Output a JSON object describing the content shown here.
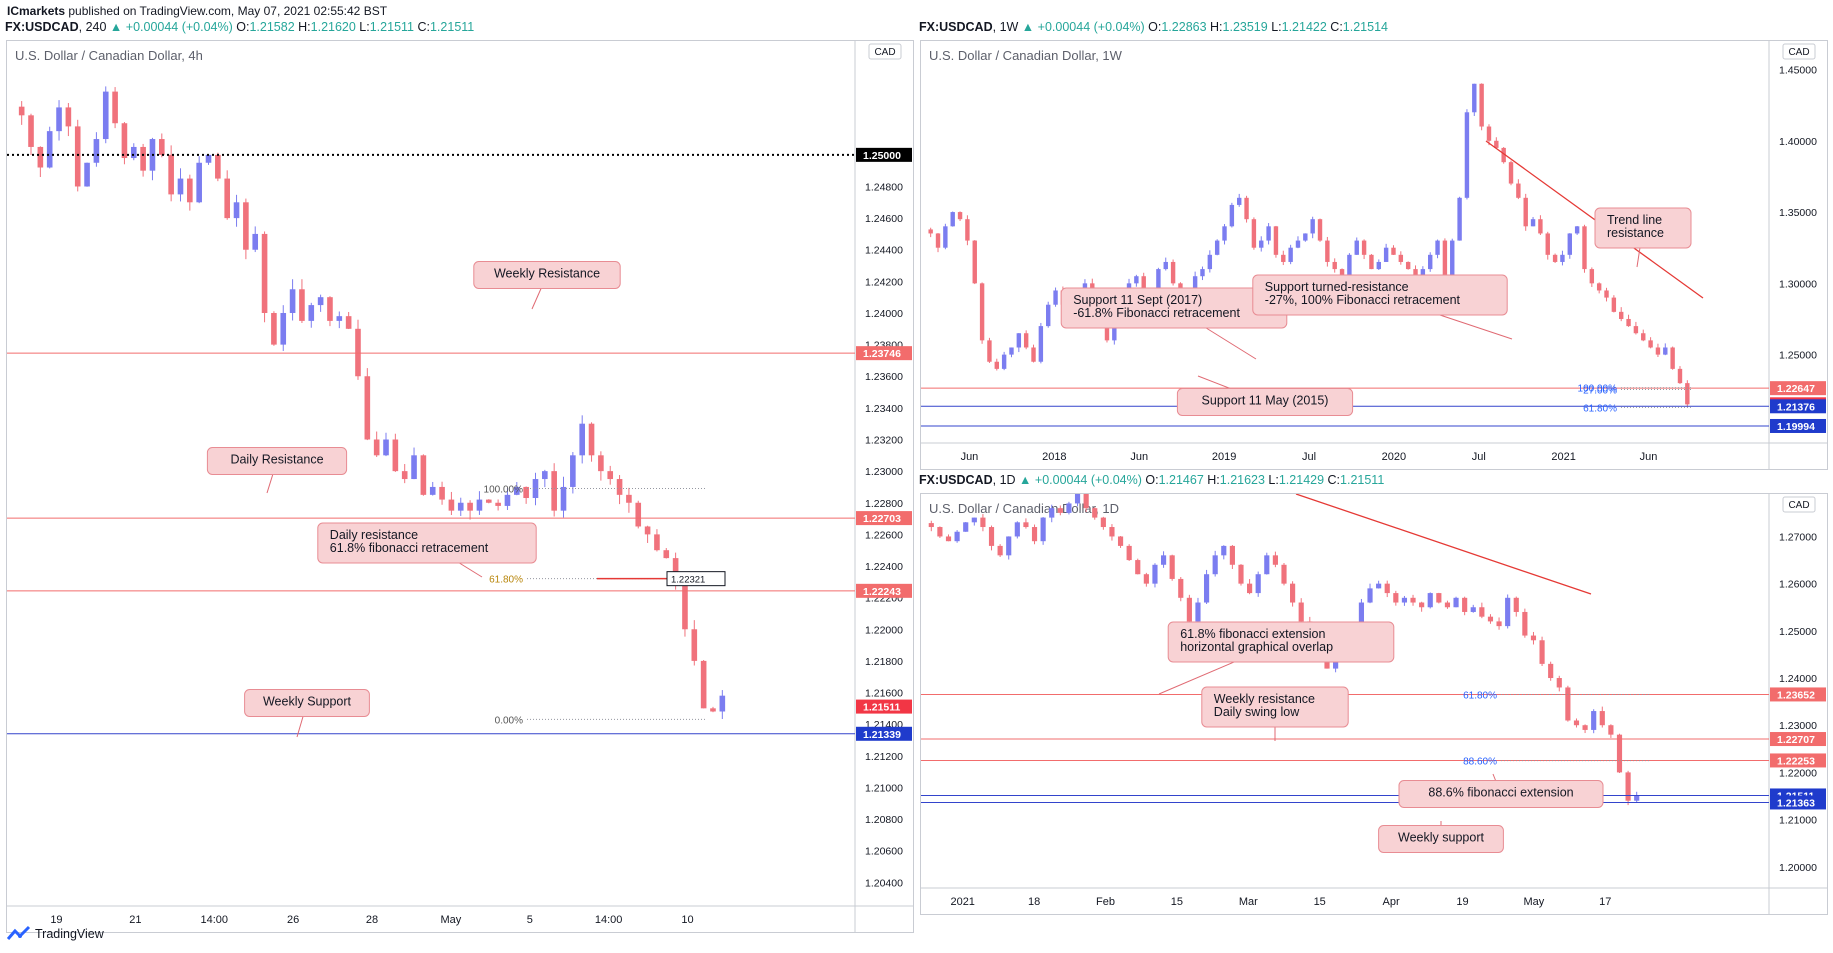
{
  "header": {
    "publisher": "ICmarkets",
    "published_text": "published on TradingView.com, May 07, 2021 02:55:42 BST"
  },
  "footer": {
    "brand": "TradingView"
  },
  "colors": {
    "up": "#7b7df0",
    "down": "#f0727c",
    "resistance": "#f26c6c",
    "support": "#3344cc",
    "label_bg": "#f8d2d4",
    "label_border": "#e88c93"
  },
  "chart_data": [
    {
      "id": "h4",
      "type": "candlestick",
      "symbol": "FX:USDCAD",
      "timeframe": "240",
      "change": "+0.00044 (+0.04%)",
      "ohlc": {
        "O": "1.21582",
        "H": "1.21620",
        "L": "1.21511",
        "C": "1.21511"
      },
      "title": "U.S. Dollar / Canadian Dollar, 4h",
      "currency": "CAD",
      "ylim": [
        1.2025,
        1.2572
      ],
      "y_ticks": [
        "1.24800",
        "1.24600",
        "1.24400",
        "1.24200",
        "1.24000",
        "1.23800",
        "1.23600",
        "1.23400",
        "1.23200",
        "1.23000",
        "1.22800",
        "1.22600",
        "1.22400",
        "1.22200",
        "1.22000",
        "1.21800",
        "1.21600",
        "1.21400",
        "1.21200",
        "1.21000",
        "1.20800",
        "1.20600",
        "1.20400"
      ],
      "x_ticks": [
        "19",
        "21",
        "14:00",
        "26",
        "28",
        "May",
        "5",
        "14:00",
        "10"
      ],
      "close_path": [
        1.2525,
        1.2505,
        1.2492,
        1.2515,
        1.253,
        1.2518,
        1.248,
        1.2495,
        1.251,
        1.254,
        1.252,
        1.2498,
        1.2505,
        1.249,
        1.251,
        1.25,
        1.2475,
        1.2485,
        1.247,
        1.2495,
        1.25,
        1.2485,
        1.246,
        1.247,
        1.244,
        1.245,
        1.24,
        1.238,
        1.24,
        1.2415,
        1.2395,
        1.2405,
        1.241,
        1.2395,
        1.2398,
        1.239,
        1.236,
        1.232,
        1.231,
        1.232,
        1.23,
        1.2295,
        1.231,
        1.2285,
        1.229,
        1.2282,
        1.2275,
        1.228,
        1.2275,
        1.2282,
        1.228,
        1.2278,
        1.2285,
        1.229,
        1.2283,
        1.2295,
        1.23,
        1.2275,
        1.229,
        1.231,
        1.233,
        1.231,
        1.23,
        1.2295,
        1.2285,
        1.228,
        1.2265,
        1.226,
        1.225,
        1.2245,
        1.223,
        1.22,
        1.218,
        1.215,
        1.2148,
        1.2158
      ],
      "levels": [
        {
          "price": 1.25,
          "label": "1.25000",
          "style": "dotted-black"
        },
        {
          "price": 1.23746,
          "label": "1.23746",
          "style": "resistance"
        },
        {
          "price": 1.22703,
          "label": "1.22703",
          "style": "resistance"
        },
        {
          "price": 1.22243,
          "label": "1.22243",
          "style": "resistance"
        },
        {
          "price": 1.21511,
          "label": "1.21511",
          "style": "current"
        },
        {
          "price": 1.21339,
          "label": "1.21339",
          "style": "support"
        }
      ],
      "fib": [
        {
          "price": 1.2289,
          "label": "100.00%"
        },
        {
          "price": 1.2232,
          "label": "61.80%",
          "marker": "1.22321"
        },
        {
          "price": 1.2143,
          "label": "0.00%"
        }
      ],
      "annotations": [
        {
          "text": "Weekly Resistance"
        },
        {
          "text": "Daily Resistance"
        },
        {
          "text": "Daily resistance\n61.8% fibonacci retracement"
        },
        {
          "text": "Weekly Support"
        }
      ]
    },
    {
      "id": "w1",
      "type": "candlestick",
      "symbol": "FX:USDCAD",
      "timeframe": "1W",
      "change": "+0.00044 (+0.04%)",
      "ohlc": {
        "O": "1.22863",
        "H": "1.23519",
        "L": "1.21422",
        "C": "1.21514"
      },
      "title": "U.S. Dollar / Canadian Dollar, 1W",
      "currency": "CAD",
      "ylim": [
        1.188,
        1.47
      ],
      "y_ticks": [
        "1.45000",
        "1.40000",
        "1.35000",
        "1.30000",
        "1.25000"
      ],
      "x_ticks": [
        "Jun",
        "2018",
        "Jun",
        "2019",
        "Jul",
        "2020",
        "Jul",
        "2021",
        "Jun"
      ],
      "close_path": [
        1.335,
        1.325,
        1.34,
        1.35,
        1.345,
        1.33,
        1.3,
        1.26,
        1.245,
        1.24,
        1.25,
        1.255,
        1.265,
        1.255,
        1.245,
        1.27,
        1.285,
        1.295,
        1.285,
        1.28,
        1.295,
        1.3,
        1.285,
        1.27,
        1.26,
        1.275,
        1.29,
        1.3,
        1.305,
        1.29,
        1.295,
        1.31,
        1.315,
        1.3,
        1.285,
        1.29,
        1.305,
        1.31,
        1.32,
        1.33,
        1.34,
        1.355,
        1.36,
        1.345,
        1.325,
        1.33,
        1.34,
        1.32,
        1.315,
        1.325,
        1.33,
        1.335,
        1.345,
        1.33,
        1.315,
        1.31,
        1.305,
        1.32,
        1.33,
        1.32,
        1.31,
        1.315,
        1.325,
        1.32,
        1.315,
        1.31,
        1.305,
        1.31,
        1.32,
        1.33,
        1.3,
        1.33,
        1.36,
        1.42,
        1.44,
        1.41,
        1.4,
        1.395,
        1.385,
        1.37,
        1.36,
        1.34,
        1.345,
        1.335,
        1.32,
        1.315,
        1.32,
        1.335,
        1.34,
        1.31,
        1.3,
        1.295,
        1.29,
        1.28,
        1.275,
        1.27,
        1.265,
        1.26,
        1.255,
        1.25,
        1.255,
        1.24,
        1.23,
        1.2151
      ],
      "levels": [
        {
          "price": 1.22647,
          "label": "1.22647",
          "style": "resistance"
        },
        {
          "price": 1.21514,
          "label": "1.21514",
          "style": "current"
        },
        {
          "price": 1.21376,
          "label": "1.21376",
          "style": "support"
        },
        {
          "price": 1.19994,
          "label": "1.19994",
          "style": "support"
        }
      ],
      "fib": [
        {
          "price": 1.2268,
          "label": "100.00%"
        },
        {
          "price": 1.2255,
          "label": "27.00%"
        },
        {
          "price": 1.213,
          "label": "61.80%"
        }
      ],
      "annotations": [
        {
          "text": "Trend line\nresistance"
        },
        {
          "text": "Support 11 Sept (2017)\n-61.8% Fibonacci retracement"
        },
        {
          "text": "Support turned-resistance\n-27%, 100% Fibonacci retracement"
        },
        {
          "text": "Support 11 May (2015)"
        }
      ]
    },
    {
      "id": "d1",
      "type": "candlestick",
      "symbol": "FX:USDCAD",
      "timeframe": "1D",
      "change": "+0.00044 (+0.04%)",
      "ohlc": {
        "O": "1.21467",
        "H": "1.21623",
        "L": "1.21429",
        "C": "1.21511"
      },
      "title": "U.S. Dollar / Canadian Dollar, 1D",
      "currency": "CAD",
      "ylim": [
        1.1955,
        1.279
      ],
      "y_ticks": [
        "1.27000",
        "1.26000",
        "1.25000",
        "1.24000",
        "1.23000",
        "1.22000",
        "1.21000",
        "1.20000"
      ],
      "x_ticks": [
        "2021",
        "18",
        "Feb",
        "15",
        "Mar",
        "15",
        "Apr",
        "19",
        "May",
        "17"
      ],
      "close_path": [
        1.272,
        1.27,
        1.269,
        1.271,
        1.273,
        1.274,
        1.272,
        1.268,
        1.266,
        1.27,
        1.273,
        1.272,
        1.269,
        1.274,
        1.276,
        1.275,
        1.277,
        1.279,
        1.276,
        1.274,
        1.272,
        1.27,
        1.268,
        1.265,
        1.262,
        1.26,
        1.264,
        1.266,
        1.261,
        1.257,
        1.252,
        1.256,
        1.262,
        1.266,
        1.268,
        1.264,
        1.26,
        1.258,
        1.262,
        1.266,
        1.264,
        1.26,
        1.256,
        1.252,
        1.248,
        1.245,
        1.242,
        1.246,
        1.248,
        1.251,
        1.256,
        1.259,
        1.26,
        1.258,
        1.256,
        1.257,
        1.256,
        1.255,
        1.258,
        1.256,
        1.255,
        1.257,
        1.254,
        1.255,
        1.253,
        1.252,
        1.251,
        1.257,
        1.254,
        1.249,
        1.248,
        1.243,
        1.24,
        1.238,
        1.231,
        1.23,
        1.229,
        1.233,
        1.23,
        1.228,
        1.22,
        1.214,
        1.215
      ],
      "levels": [
        {
          "price": 1.23652,
          "label": "1.23652",
          "style": "resistance"
        },
        {
          "price": 1.22707,
          "label": "1.22707",
          "style": "resistance"
        },
        {
          "price": 1.22253,
          "label": "1.22253",
          "style": "resistance"
        },
        {
          "price": 1.21511,
          "label": "1.21511",
          "style": "support-blue"
        },
        {
          "price": 1.21363,
          "label": "1.21363",
          "style": "support"
        }
      ],
      "fib": [
        {
          "price": 1.2365,
          "label": "61.80%"
        },
        {
          "price": 1.2225,
          "label": "88.60%"
        }
      ],
      "annotations": [
        {
          "text": "61.8% fibonacci extension\nhorizontal graphical overlap"
        },
        {
          "text": "Weekly resistance\nDaily swing low"
        },
        {
          "text": "88.6% fibonacci extension"
        },
        {
          "text": "Weekly support"
        }
      ]
    }
  ]
}
